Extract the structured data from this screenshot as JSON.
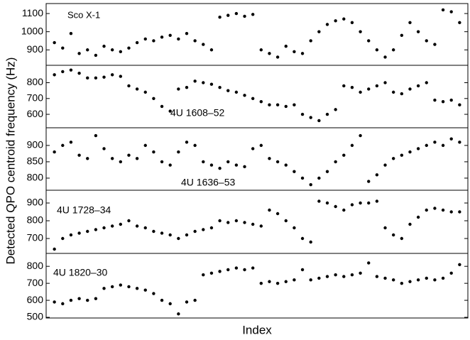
{
  "chart_data": [
    {
      "type": "scatter",
      "title": "Sco X-1",
      "color": "#000000",
      "x": [
        1,
        2,
        3,
        4,
        5,
        6,
        7,
        8,
        9,
        10,
        11,
        12,
        13,
        14,
        15,
        16,
        17,
        18,
        19,
        20,
        21,
        22,
        23,
        24,
        25,
        26,
        27,
        28,
        29,
        30,
        31,
        32,
        33,
        34,
        35,
        36,
        37,
        38,
        39,
        40,
        41,
        42,
        43,
        44,
        45,
        46,
        47,
        48,
        49,
        50
      ],
      "values": [
        940,
        910,
        990,
        880,
        900,
        870,
        920,
        900,
        890,
        910,
        940,
        960,
        950,
        970,
        980,
        960,
        990,
        950,
        930,
        900,
        1080,
        1090,
        1100,
        1085,
        1095,
        900,
        880,
        860,
        920,
        890,
        880,
        950,
        1000,
        1040,
        1060,
        1070,
        1050,
        1000,
        950,
        900,
        860,
        900,
        980,
        1050,
        1000,
        950,
        930,
        1120,
        1110,
        1050
      ],
      "xlim": [
        0,
        51
      ],
      "ylim": [
        815,
        1155
      ],
      "yticks": [
        900,
        1000,
        1100
      ]
    },
    {
      "type": "scatter",
      "title": "4U 1608–52",
      "color": "#000000",
      "x": [
        1,
        2,
        3,
        4,
        5,
        6,
        7,
        8,
        9,
        10,
        11,
        12,
        13,
        14,
        15,
        16,
        17,
        18,
        19,
        20,
        21,
        22,
        23,
        24,
        25,
        26,
        27,
        28,
        29,
        30,
        31,
        32,
        33,
        34,
        35,
        36,
        37,
        38,
        39,
        40,
        41,
        42,
        43,
        44,
        45,
        46,
        47,
        48,
        49,
        50
      ],
      "values": [
        850,
        870,
        880,
        860,
        830,
        830,
        835,
        850,
        840,
        780,
        760,
        740,
        700,
        650,
        620,
        760,
        770,
        810,
        800,
        790,
        770,
        750,
        740,
        720,
        700,
        680,
        660,
        660,
        650,
        660,
        600,
        580,
        560,
        600,
        630,
        780,
        770,
        740,
        760,
        780,
        800,
        740,
        730,
        760,
        780,
        800,
        690,
        680,
        690,
        660
      ],
      "xlim": [
        0,
        51
      ],
      "ylim": [
        515,
        910
      ],
      "yticks": [
        600,
        700,
        800
      ]
    },
    {
      "type": "scatter",
      "title": "4U 1636–53",
      "color": "#000000",
      "ylabel": "Detected QPO centroid frequency (Hz)",
      "x": [
        1,
        2,
        3,
        4,
        5,
        6,
        7,
        8,
        9,
        10,
        11,
        12,
        13,
        14,
        15,
        16,
        17,
        18,
        19,
        20,
        21,
        22,
        23,
        24,
        25,
        26,
        27,
        28,
        29,
        30,
        31,
        32,
        33,
        34,
        35,
        36,
        37,
        38,
        39,
        40,
        41,
        42,
        43,
        44,
        45,
        46,
        47,
        48,
        49,
        50
      ],
      "values": [
        880,
        900,
        910,
        870,
        860,
        930,
        890,
        860,
        850,
        870,
        860,
        900,
        880,
        850,
        840,
        880,
        910,
        900,
        850,
        840,
        830,
        850,
        840,
        835,
        890,
        900,
        860,
        850,
        840,
        820,
        800,
        780,
        800,
        820,
        850,
        870,
        900,
        930,
        790,
        810,
        840,
        860,
        870,
        880,
        890,
        900,
        910,
        900,
        920,
        910
      ],
      "xlim": [
        0,
        51
      ],
      "ylim": [
        763,
        954
      ],
      "yticks": [
        800,
        850,
        900
      ]
    },
    {
      "type": "scatter",
      "title": "4U 1728–34",
      "color": "#000000",
      "x": [
        1,
        2,
        3,
        4,
        5,
        6,
        7,
        8,
        9,
        10,
        11,
        12,
        13,
        14,
        15,
        16,
        17,
        18,
        19,
        20,
        21,
        22,
        23,
        24,
        25,
        26,
        27,
        28,
        29,
        30,
        31,
        32,
        33,
        34,
        35,
        36,
        37,
        38,
        39,
        40,
        41,
        42,
        43,
        44,
        45,
        46,
        47,
        48,
        49,
        50
      ],
      "values": [
        640,
        700,
        720,
        730,
        740,
        750,
        760,
        770,
        780,
        800,
        770,
        760,
        740,
        730,
        720,
        700,
        720,
        740,
        750,
        760,
        800,
        790,
        800,
        790,
        780,
        770,
        860,
        840,
        800,
        760,
        700,
        680,
        910,
        900,
        880,
        860,
        890,
        900,
        900,
        910,
        760,
        720,
        700,
        780,
        820,
        860,
        870,
        860,
        850,
        850
      ],
      "xlim": [
        0,
        51
      ],
      "ylim": [
        616,
        972
      ],
      "yticks": [
        700,
        800,
        900
      ]
    },
    {
      "type": "scatter",
      "title": "4U 1820–30",
      "color": "#000000",
      "xlabel": "Index",
      "x": [
        1,
        2,
        3,
        4,
        5,
        6,
        7,
        8,
        9,
        10,
        11,
        12,
        13,
        14,
        15,
        16,
        17,
        18,
        19,
        20,
        21,
        22,
        23,
        24,
        25,
        26,
        27,
        28,
        29,
        30,
        31,
        32,
        33,
        34,
        35,
        36,
        37,
        38,
        39,
        40,
        41,
        42,
        43,
        44,
        45,
        46,
        47,
        48,
        49,
        50
      ],
      "values": [
        590,
        580,
        600,
        610,
        600,
        610,
        670,
        680,
        690,
        680,
        670,
        660,
        640,
        600,
        580,
        520,
        590,
        600,
        750,
        760,
        770,
        780,
        790,
        780,
        790,
        700,
        710,
        700,
        710,
        720,
        780,
        720,
        730,
        740,
        750,
        740,
        750,
        760,
        820,
        740,
        730,
        720,
        700,
        710,
        720,
        730,
        720,
        730,
        760,
        810
      ],
      "xlim": [
        0,
        51
      ],
      "ylim": [
        496,
        876
      ],
      "yticks": [
        500,
        600,
        700,
        800
      ]
    }
  ]
}
